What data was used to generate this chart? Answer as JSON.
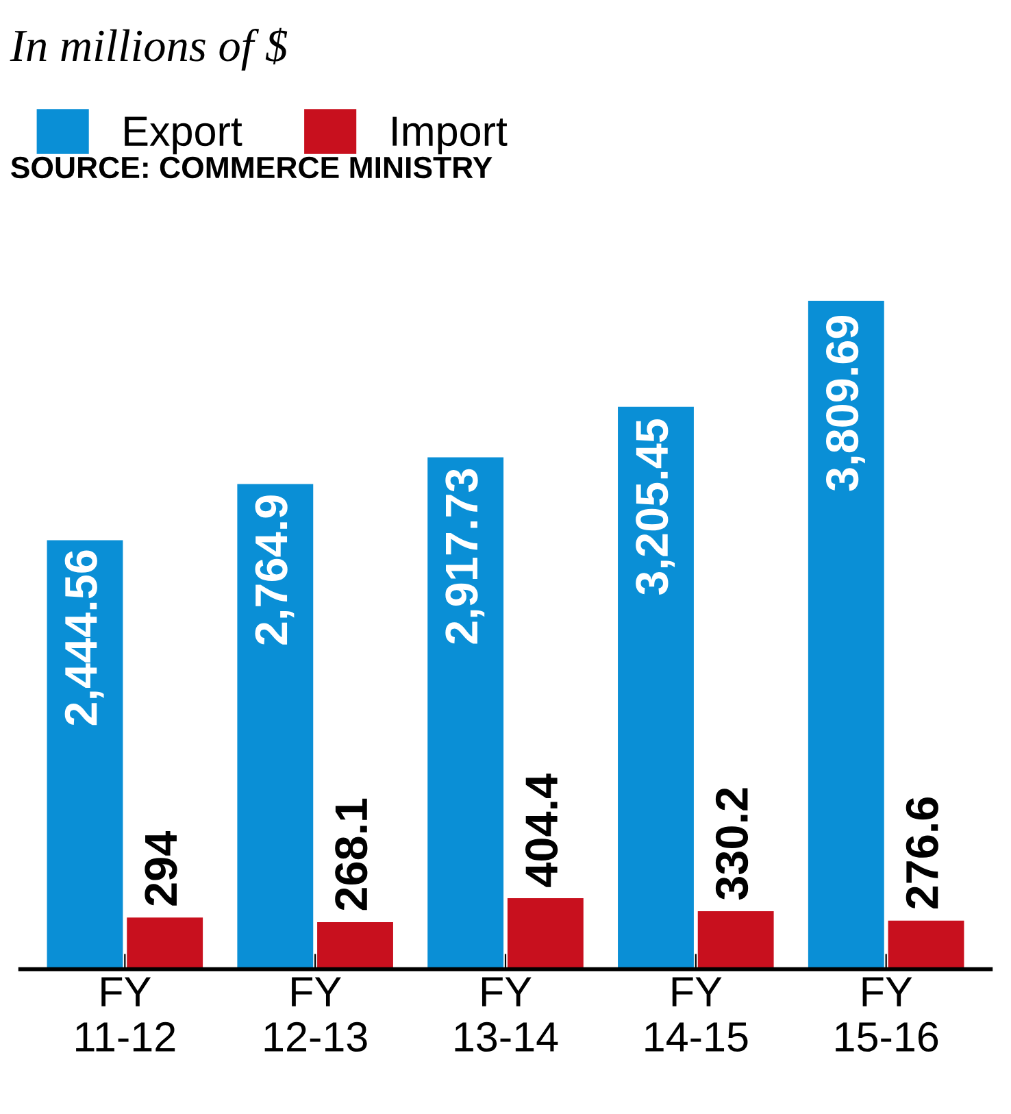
{
  "chart_data": {
    "type": "bar",
    "title": "In millions of $",
    "categories": [
      "FY\n11-12",
      "FY\n12-13",
      "FY\n13-14",
      "FY\n14-15",
      "FY\n15-16"
    ],
    "series": [
      {
        "name": "Export",
        "color": "#0a8fd6",
        "values": [
          2444.56,
          2764.9,
          2917.73,
          3205.45,
          3809.69
        ],
        "value_labels": [
          "2,444.56",
          "2,764.9",
          "2,917.73",
          "3,205.45",
          "3,809.69"
        ]
      },
      {
        "name": "Import",
        "color": "#c8101e",
        "values": [
          294,
          268.1,
          404.4,
          330.2,
          276.6
        ],
        "value_labels": [
          "294",
          "268.1",
          "404.4",
          "330.2",
          "276.6"
        ]
      }
    ],
    "legend": "top left",
    "grid": false,
    "annotations": [
      "SOURCE: COMMERCE MINISTRY"
    ]
  }
}
